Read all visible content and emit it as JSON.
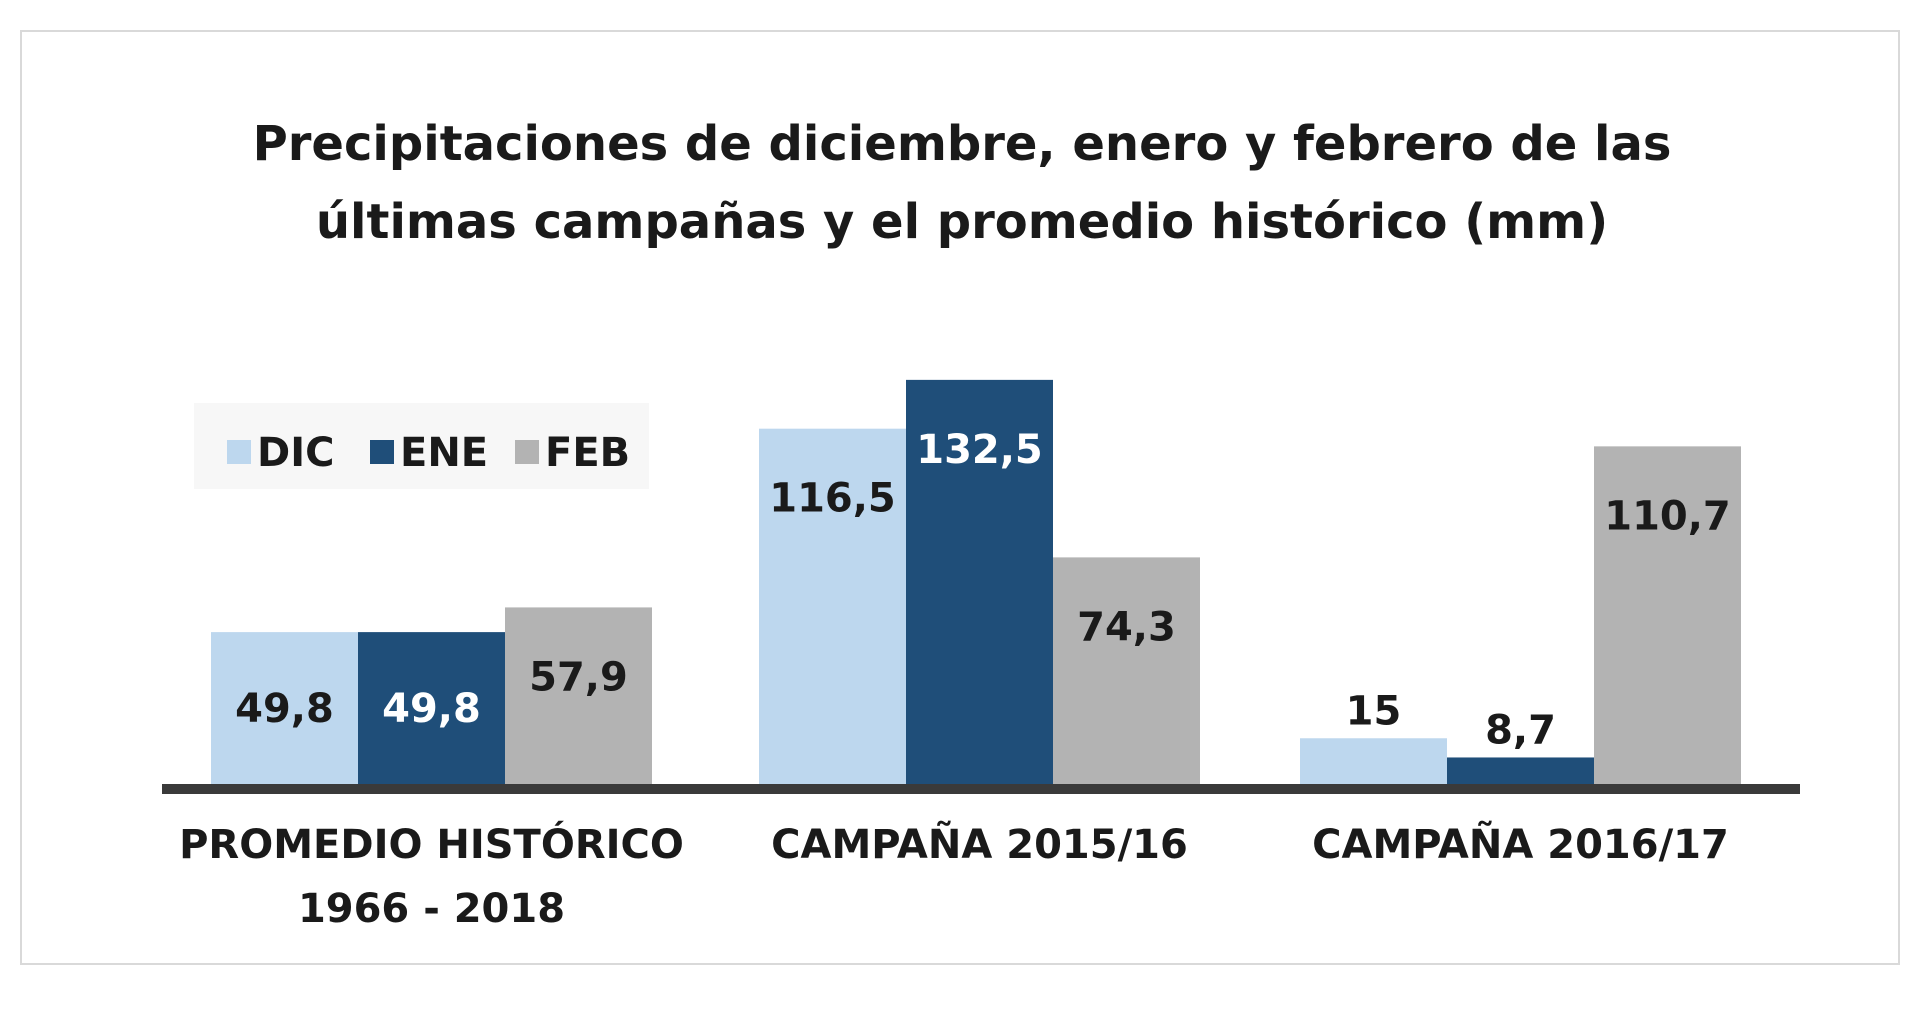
{
  "chart_data": {
    "type": "bar",
    "title_lines": [
      "Precipitaciones de diciembre, enero y febrero de las",
      "últimas campañas y el promedio histórico (mm)"
    ],
    "categories": [
      [
        "PROMEDIO HISTÓRICO",
        "1966 - 2018"
      ],
      [
        "CAMPAÑA 2015/16"
      ],
      [
        "CAMPAÑA 2016/17"
      ]
    ],
    "series": [
      {
        "name": "DIC",
        "color": "#bdd7ee",
        "label_color": "#1a1a1a",
        "values": [
          49.8,
          116.5,
          15
        ],
        "labels": [
          "49,8",
          "116,5",
          "15"
        ]
      },
      {
        "name": "ENE",
        "color": "#1f4e79",
        "label_color": "#ffffff",
        "values": [
          49.8,
          132.5,
          8.7
        ],
        "labels": [
          "49,8",
          "132,5",
          "8,7"
        ]
      },
      {
        "name": "FEB",
        "color": "#b3b3b3",
        "label_color": "#1a1a1a",
        "values": [
          57.9,
          74.3,
          110.7
        ],
        "labels": [
          "57,9",
          "74,3",
          "110,7"
        ]
      }
    ],
    "legend_position": "top-left",
    "grid": false,
    "xlabel": "",
    "ylabel": ""
  }
}
